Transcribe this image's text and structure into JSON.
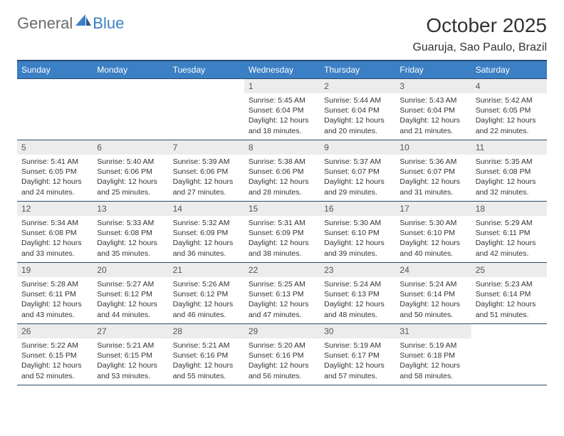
{
  "logo": {
    "text1": "General",
    "text2": "Blue"
  },
  "title": "October 2025",
  "location": "Guaruja, Sao Paulo, Brazil",
  "dayHeaders": [
    "Sunday",
    "Monday",
    "Tuesday",
    "Wednesday",
    "Thursday",
    "Friday",
    "Saturday"
  ],
  "colors": {
    "headerBg": "#3b7fc4",
    "headerText": "#ffffff",
    "dayNumBg": "#ececec",
    "border": "#2a4a6b",
    "logoGray": "#6b6b6b",
    "logoBlue": "#3b7fc4"
  },
  "weeks": [
    [
      {
        "num": "",
        "lines": []
      },
      {
        "num": "",
        "lines": []
      },
      {
        "num": "",
        "lines": []
      },
      {
        "num": "1",
        "lines": [
          "Sunrise: 5:45 AM",
          "Sunset: 6:04 PM",
          "Daylight: 12 hours",
          "and 18 minutes."
        ]
      },
      {
        "num": "2",
        "lines": [
          "Sunrise: 5:44 AM",
          "Sunset: 6:04 PM",
          "Daylight: 12 hours",
          "and 20 minutes."
        ]
      },
      {
        "num": "3",
        "lines": [
          "Sunrise: 5:43 AM",
          "Sunset: 6:04 PM",
          "Daylight: 12 hours",
          "and 21 minutes."
        ]
      },
      {
        "num": "4",
        "lines": [
          "Sunrise: 5:42 AM",
          "Sunset: 6:05 PM",
          "Daylight: 12 hours",
          "and 22 minutes."
        ]
      }
    ],
    [
      {
        "num": "5",
        "lines": [
          "Sunrise: 5:41 AM",
          "Sunset: 6:05 PM",
          "Daylight: 12 hours",
          "and 24 minutes."
        ]
      },
      {
        "num": "6",
        "lines": [
          "Sunrise: 5:40 AM",
          "Sunset: 6:06 PM",
          "Daylight: 12 hours",
          "and 25 minutes."
        ]
      },
      {
        "num": "7",
        "lines": [
          "Sunrise: 5:39 AM",
          "Sunset: 6:06 PM",
          "Daylight: 12 hours",
          "and 27 minutes."
        ]
      },
      {
        "num": "8",
        "lines": [
          "Sunrise: 5:38 AM",
          "Sunset: 6:06 PM",
          "Daylight: 12 hours",
          "and 28 minutes."
        ]
      },
      {
        "num": "9",
        "lines": [
          "Sunrise: 5:37 AM",
          "Sunset: 6:07 PM",
          "Daylight: 12 hours",
          "and 29 minutes."
        ]
      },
      {
        "num": "10",
        "lines": [
          "Sunrise: 5:36 AM",
          "Sunset: 6:07 PM",
          "Daylight: 12 hours",
          "and 31 minutes."
        ]
      },
      {
        "num": "11",
        "lines": [
          "Sunrise: 5:35 AM",
          "Sunset: 6:08 PM",
          "Daylight: 12 hours",
          "and 32 minutes."
        ]
      }
    ],
    [
      {
        "num": "12",
        "lines": [
          "Sunrise: 5:34 AM",
          "Sunset: 6:08 PM",
          "Daylight: 12 hours",
          "and 33 minutes."
        ]
      },
      {
        "num": "13",
        "lines": [
          "Sunrise: 5:33 AM",
          "Sunset: 6:08 PM",
          "Daylight: 12 hours",
          "and 35 minutes."
        ]
      },
      {
        "num": "14",
        "lines": [
          "Sunrise: 5:32 AM",
          "Sunset: 6:09 PM",
          "Daylight: 12 hours",
          "and 36 minutes."
        ]
      },
      {
        "num": "15",
        "lines": [
          "Sunrise: 5:31 AM",
          "Sunset: 6:09 PM",
          "Daylight: 12 hours",
          "and 38 minutes."
        ]
      },
      {
        "num": "16",
        "lines": [
          "Sunrise: 5:30 AM",
          "Sunset: 6:10 PM",
          "Daylight: 12 hours",
          "and 39 minutes."
        ]
      },
      {
        "num": "17",
        "lines": [
          "Sunrise: 5:30 AM",
          "Sunset: 6:10 PM",
          "Daylight: 12 hours",
          "and 40 minutes."
        ]
      },
      {
        "num": "18",
        "lines": [
          "Sunrise: 5:29 AM",
          "Sunset: 6:11 PM",
          "Daylight: 12 hours",
          "and 42 minutes."
        ]
      }
    ],
    [
      {
        "num": "19",
        "lines": [
          "Sunrise: 5:28 AM",
          "Sunset: 6:11 PM",
          "Daylight: 12 hours",
          "and 43 minutes."
        ]
      },
      {
        "num": "20",
        "lines": [
          "Sunrise: 5:27 AM",
          "Sunset: 6:12 PM",
          "Daylight: 12 hours",
          "and 44 minutes."
        ]
      },
      {
        "num": "21",
        "lines": [
          "Sunrise: 5:26 AM",
          "Sunset: 6:12 PM",
          "Daylight: 12 hours",
          "and 46 minutes."
        ]
      },
      {
        "num": "22",
        "lines": [
          "Sunrise: 5:25 AM",
          "Sunset: 6:13 PM",
          "Daylight: 12 hours",
          "and 47 minutes."
        ]
      },
      {
        "num": "23",
        "lines": [
          "Sunrise: 5:24 AM",
          "Sunset: 6:13 PM",
          "Daylight: 12 hours",
          "and 48 minutes."
        ]
      },
      {
        "num": "24",
        "lines": [
          "Sunrise: 5:24 AM",
          "Sunset: 6:14 PM",
          "Daylight: 12 hours",
          "and 50 minutes."
        ]
      },
      {
        "num": "25",
        "lines": [
          "Sunrise: 5:23 AM",
          "Sunset: 6:14 PM",
          "Daylight: 12 hours",
          "and 51 minutes."
        ]
      }
    ],
    [
      {
        "num": "26",
        "lines": [
          "Sunrise: 5:22 AM",
          "Sunset: 6:15 PM",
          "Daylight: 12 hours",
          "and 52 minutes."
        ]
      },
      {
        "num": "27",
        "lines": [
          "Sunrise: 5:21 AM",
          "Sunset: 6:15 PM",
          "Daylight: 12 hours",
          "and 53 minutes."
        ]
      },
      {
        "num": "28",
        "lines": [
          "Sunrise: 5:21 AM",
          "Sunset: 6:16 PM",
          "Daylight: 12 hours",
          "and 55 minutes."
        ]
      },
      {
        "num": "29",
        "lines": [
          "Sunrise: 5:20 AM",
          "Sunset: 6:16 PM",
          "Daylight: 12 hours",
          "and 56 minutes."
        ]
      },
      {
        "num": "30",
        "lines": [
          "Sunrise: 5:19 AM",
          "Sunset: 6:17 PM",
          "Daylight: 12 hours",
          "and 57 minutes."
        ]
      },
      {
        "num": "31",
        "lines": [
          "Sunrise: 5:19 AM",
          "Sunset: 6:18 PM",
          "Daylight: 12 hours",
          "and 58 minutes."
        ]
      },
      {
        "num": "",
        "lines": []
      }
    ]
  ]
}
